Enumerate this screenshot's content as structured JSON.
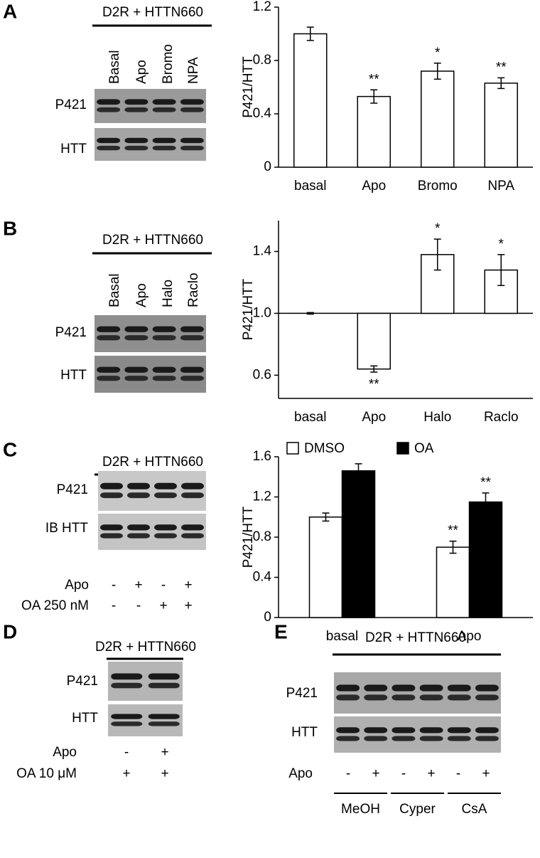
{
  "panels": {
    "A": {
      "label": "A",
      "header": "D2R + HTTN660",
      "lanes": [
        "Basal",
        "Apo",
        "Bromo",
        "NPA"
      ],
      "rows": [
        "P421",
        "HTT"
      ]
    },
    "B": {
      "label": "B",
      "header": "D2R + HTTN660",
      "lanes": [
        "Basal",
        "Apo",
        "Halo",
        "Raclo"
      ],
      "rows": [
        "P421",
        "HTT"
      ]
    },
    "C": {
      "label": "C",
      "header": "D2R + HTTN660",
      "rows": [
        "P421",
        "IB HTT"
      ],
      "conditions": [
        {
          "name": "Apo",
          "signs": [
            "-",
            "+",
            "-",
            "+"
          ]
        },
        {
          "name": "OA 250 nM",
          "signs": [
            "-",
            "-",
            "+",
            "+"
          ]
        }
      ]
    },
    "D": {
      "label": "D",
      "header": "D2R + HTTN660",
      "rows": [
        "P421",
        "HTT"
      ],
      "conditions": [
        {
          "name": "Apo",
          "signs": [
            "-",
            "+"
          ]
        },
        {
          "name": "OA 10 μM",
          "signs": [
            "+",
            "+"
          ]
        }
      ]
    },
    "E": {
      "label": "E",
      "header": "D2R + HTTN660",
      "rows": [
        "P421",
        "HTT"
      ],
      "conditions": [
        {
          "name": "Apo",
          "signs": [
            "-",
            "+",
            "-",
            "+",
            "-",
            "+"
          ]
        }
      ],
      "groups": [
        "MeOH",
        "Cyper",
        "CsA"
      ]
    }
  },
  "chart_data": [
    {
      "type": "bar",
      "ylabel": "P421/HTT",
      "categories": [
        "basal",
        "Apo",
        "Bromo",
        "NPA"
      ],
      "values": [
        1.0,
        0.53,
        0.72,
        0.63
      ],
      "errors": [
        0.05,
        0.05,
        0.06,
        0.04
      ],
      "annotations": [
        null,
        "**",
        "*",
        "**"
      ],
      "color": "#ffffff",
      "ylim": [
        0,
        1.2
      ],
      "yticks": [
        0,
        0.4,
        0.8,
        1.2
      ],
      "baseline": 0
    },
    {
      "type": "bar",
      "ylabel": "P421/HTT",
      "categories": [
        "basal",
        "Apo",
        "Halo",
        "Raclo"
      ],
      "values": [
        1.0,
        0.64,
        1.38,
        1.28
      ],
      "errors": [
        0.005,
        0.02,
        0.1,
        0.1
      ],
      "annotations": [
        null,
        "**",
        "*",
        "*"
      ],
      "color": "#ffffff",
      "ylim": [
        0.45,
        1.6
      ],
      "yticks": [
        0.6,
        {
          "value": 1,
          "label": "1.0"
        },
        1.4
      ],
      "baseline": 1
    },
    {
      "type": "grouped-bar",
      "ylabel": "P421/HTT",
      "categories": [
        "basal",
        "Apo"
      ],
      "series": [
        {
          "name": "DMSO",
          "color": "#ffffff",
          "values": [
            1.0,
            0.7
          ],
          "errors": [
            0.04,
            0.06
          ],
          "annotations": [
            null,
            "**"
          ]
        },
        {
          "name": "OA",
          "color": "#000000",
          "values": [
            1.46,
            1.15
          ],
          "errors": [
            0.07,
            0.09
          ],
          "annotations": [
            null,
            "**"
          ]
        }
      ],
      "ylim": [
        0,
        1.6
      ],
      "yticks": [
        0,
        0.4,
        0.8,
        1.2,
        1.6
      ],
      "baseline": 0,
      "legend": "top"
    }
  ]
}
